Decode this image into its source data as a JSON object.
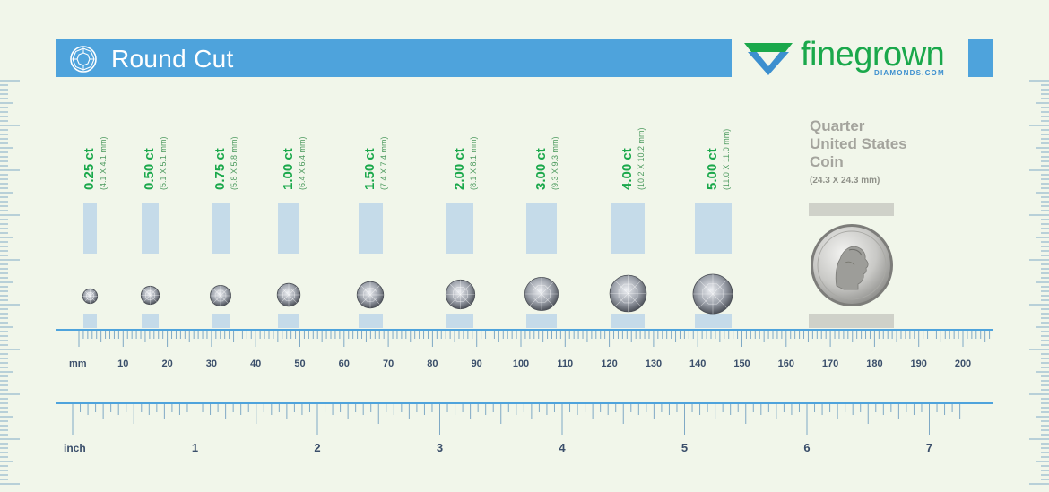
{
  "header": {
    "title": "Round Cut",
    "title_icon": "round-diamond-icon"
  },
  "brand": {
    "name": "finegrown",
    "sub": "DIAMONDS.COM",
    "icon": "diamond-logo-icon",
    "colors": {
      "green": "#1aa84b",
      "blue": "#3c8fcf"
    }
  },
  "diamonds": [
    {
      "carat": "0.25 ct",
      "dims": "(4.1 X 4.1 mm)",
      "mm": 4.1
    },
    {
      "carat": "0.50 ct",
      "dims": "(5.1 X 5.1 mm)",
      "mm": 5.1
    },
    {
      "carat": "0.75 ct",
      "dims": "(5.8 X 5.8 mm)",
      "mm": 5.8
    },
    {
      "carat": "1.00 ct",
      "dims": "(6.4 X 6.4 mm)",
      "mm": 6.4
    },
    {
      "carat": "1.50 ct",
      "dims": "(7.4 X 7.4 mm)",
      "mm": 7.4
    },
    {
      "carat": "2.00 ct",
      "dims": "(8.1 X 8.1 mm)",
      "mm": 8.1
    },
    {
      "carat": "3.00 ct",
      "dims": "(9.3 X 9.3 mm)",
      "mm": 9.3
    },
    {
      "carat": "4.00 ct",
      "dims": "(10.2 X 10.2 mm)",
      "mm": 10.2
    },
    {
      "carat": "5.00 ct",
      "dims": "(11.0 X 11.0 mm)",
      "mm": 11.0
    }
  ],
  "coin": {
    "line1": "Quarter",
    "line2": "United States",
    "line3": "Coin",
    "dims": "(24.3 X 24.3 mm)",
    "mm": 24.3,
    "icon": "quarter-coin-icon"
  },
  "mm_ruler": {
    "unit": "mm",
    "labels": [
      "10",
      "20",
      "30",
      "40",
      "50",
      "60",
      "70",
      "80",
      "90",
      "100",
      "110",
      "120",
      "130",
      "140",
      "150",
      "160",
      "170",
      "180",
      "190",
      "200"
    ]
  },
  "inch_ruler": {
    "unit": "inch",
    "labels": [
      "1",
      "2",
      "3",
      "4",
      "5",
      "6",
      "7"
    ]
  }
}
